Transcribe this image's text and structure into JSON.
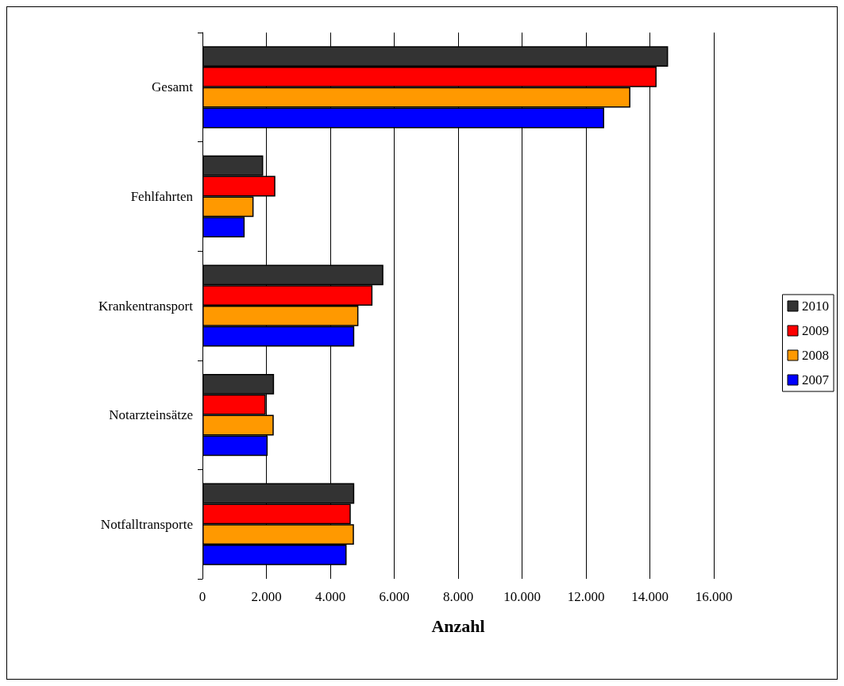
{
  "chart_data": {
    "type": "bar",
    "orientation": "horizontal",
    "xlabel": "Anzahl",
    "categories": [
      "Gesamt",
      "Fehlfahrten",
      "Krankentransport",
      "Notarzteinsätze",
      "Notfalltransporte"
    ],
    "series": [
      {
        "name": "2010",
        "color": "#333333",
        "values": [
          14570,
          1900,
          5660,
          2240,
          4750
        ]
      },
      {
        "name": "2009",
        "color": "#ff0000",
        "values": [
          14210,
          2280,
          5320,
          1980,
          4640
        ]
      },
      {
        "name": "2008",
        "color": "#ff9900",
        "values": [
          13390,
          1600,
          4880,
          2230,
          4740
        ]
      },
      {
        "name": "2007",
        "color": "#0000ff",
        "values": [
          12570,
          1320,
          4750,
          2040,
          4510
        ]
      }
    ],
    "xlim": [
      0,
      16000
    ],
    "xticks": [
      0,
      {
        "value": 2000,
        "label": "2.000"
      },
      {
        "value": 4000,
        "label": "4.000"
      },
      {
        "value": 6000,
        "label": "6.000"
      },
      {
        "value": 8000,
        "label": "8.000"
      },
      {
        "value": 10000,
        "label": "10.000"
      },
      {
        "value": 12000,
        "label": "12.000"
      },
      {
        "value": 14000,
        "label": "14.000"
      },
      {
        "value": 16000,
        "label": "16.000"
      }
    ],
    "grid": "x",
    "legend": "right"
  }
}
